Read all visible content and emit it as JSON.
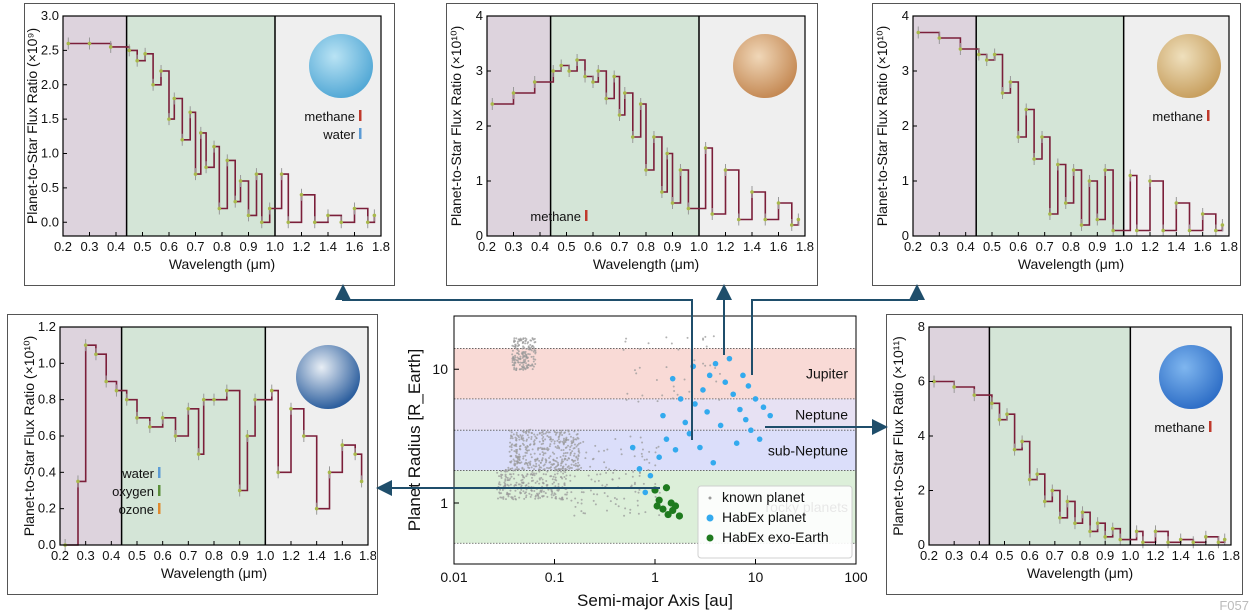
{
  "corner_label": "F057",
  "chart_data": [
    {
      "id": "jupiter-cold",
      "type": "line",
      "xlabel": "Wavelength (μm)",
      "ylabel": "Planet-to-Star Flux Ratio (×10⁹)",
      "xlim": [
        0.2,
        1.8
      ],
      "ylim": [
        -0.2,
        3.0
      ],
      "xticks": [
        "0.2",
        "0.3",
        "0.4",
        "0.5",
        "0.6",
        "0.7",
        "0.8",
        "0.9",
        "1.0",
        "1.2",
        "1.4",
        "1.6",
        "1.8"
      ],
      "yticks": [
        "0.0",
        "0.5",
        "1.0",
        "1.5",
        "2.0",
        "2.5",
        "3.0"
      ],
      "legend": [
        {
          "label": "methane",
          "color": "#c0392b"
        },
        {
          "label": "water",
          "color": "#5b9bd5"
        }
      ],
      "x": [
        0.22,
        0.3,
        0.38,
        0.45,
        0.48,
        0.51,
        0.54,
        0.57,
        0.6,
        0.62,
        0.65,
        0.68,
        0.7,
        0.72,
        0.74,
        0.77,
        0.79,
        0.82,
        0.85,
        0.87,
        0.9,
        0.93,
        0.95,
        0.98,
        1.05,
        1.1,
        1.2,
        1.3,
        1.4,
        1.5,
        1.6,
        1.7,
        1.75
      ],
      "y": [
        2.6,
        2.6,
        2.55,
        2.5,
        2.35,
        2.45,
        2.0,
        2.2,
        1.5,
        1.8,
        1.2,
        1.6,
        0.7,
        1.3,
        0.8,
        1.1,
        0.2,
        0.9,
        0.3,
        0.6,
        0.1,
        0.7,
        0.0,
        0.2,
        0.7,
        0.0,
        0.4,
        0.0,
        0.1,
        0.0,
        0.2,
        0.0,
        0.1
      ]
    },
    {
      "id": "jupiter-warm",
      "type": "line",
      "xlabel": "Wavelength (μm)",
      "ylabel": "Planet-to-Star Flux Ratio (×10¹⁰)",
      "xlim": [
        0.2,
        1.8
      ],
      "ylim": [
        0,
        4
      ],
      "xticks": [
        "0.2",
        "0.3",
        "0.4",
        "0.5",
        "0.6",
        "0.7",
        "0.8",
        "0.9",
        "1.0",
        "1.2",
        "1.4",
        "1.6",
        "1.8"
      ],
      "yticks": [
        "0",
        "1",
        "2",
        "3",
        "4"
      ],
      "legend": [
        {
          "label": "methane",
          "color": "#c0392b"
        }
      ],
      "x": [
        0.22,
        0.3,
        0.38,
        0.45,
        0.48,
        0.51,
        0.54,
        0.57,
        0.6,
        0.62,
        0.65,
        0.68,
        0.7,
        0.72,
        0.75,
        0.78,
        0.8,
        0.83,
        0.86,
        0.88,
        0.9,
        0.93,
        0.96,
        1.05,
        1.1,
        1.2,
        1.3,
        1.4,
        1.5,
        1.6,
        1.7,
        1.75
      ],
      "y": [
        2.4,
        2.6,
        2.8,
        3.0,
        3.1,
        3.0,
        3.2,
        2.9,
        2.8,
        3.0,
        2.5,
        2.9,
        2.2,
        2.6,
        1.8,
        2.4,
        1.2,
        1.8,
        0.8,
        1.5,
        0.6,
        1.2,
        0.5,
        1.6,
        0.4,
        1.2,
        0.3,
        0.8,
        0.3,
        0.6,
        0.2,
        0.3
      ]
    },
    {
      "id": "saturn",
      "type": "line",
      "xlabel": "Wavelength (μm)",
      "ylabel": "Planet-to-Star Flux Ratio (×10¹⁰)",
      "xlim": [
        0.2,
        1.8
      ],
      "ylim": [
        0,
        4
      ],
      "xticks": [
        "0.2",
        "0.3",
        "0.4",
        "0.5",
        "0.6",
        "0.7",
        "0.8",
        "0.9",
        "1.0",
        "1.2",
        "1.4",
        "1.6",
        "1.8"
      ],
      "yticks": [
        "0",
        "1",
        "2",
        "3",
        "4"
      ],
      "legend": [
        {
          "label": "methane",
          "color": "#c0392b"
        }
      ],
      "x": [
        0.22,
        0.3,
        0.38,
        0.45,
        0.48,
        0.51,
        0.54,
        0.57,
        0.6,
        0.63,
        0.66,
        0.69,
        0.72,
        0.75,
        0.78,
        0.81,
        0.84,
        0.87,
        0.9,
        0.93,
        0.96,
        1.05,
        1.1,
        1.2,
        1.3,
        1.4,
        1.5,
        1.6,
        1.7,
        1.75
      ],
      "y": [
        3.7,
        3.6,
        3.4,
        3.3,
        3.2,
        3.3,
        2.6,
        2.8,
        1.8,
        2.3,
        1.4,
        1.8,
        0.4,
        1.3,
        0.6,
        1.2,
        0.2,
        1.0,
        0.3,
        1.2,
        0.1,
        1.1,
        0.1,
        1.0,
        0.1,
        0.6,
        0.1,
        0.4,
        0.1,
        0.2
      ]
    },
    {
      "id": "earth",
      "type": "line",
      "xlabel": "Wavelength (μm)",
      "ylabel": "Planet-to-Star Flux Ratio (×10¹⁰)",
      "xlim": [
        0.2,
        1.8
      ],
      "ylim": [
        0,
        1.2
      ],
      "xticks": [
        "0.2",
        "0.3",
        "0.4",
        "0.5",
        "0.6",
        "0.7",
        "0.8",
        "0.9",
        "1.0",
        "1.2",
        "1.4",
        "1.6",
        "1.8"
      ],
      "yticks": [
        "0.0",
        "0.2",
        "0.4",
        "0.6",
        "0.8",
        "1.0",
        "1.2"
      ],
      "legend": [
        {
          "label": "water",
          "color": "#5b9bd5"
        },
        {
          "label": "oxygen",
          "color": "#5a8f3a"
        },
        {
          "label": "ozone",
          "color": "#e08a2e"
        }
      ],
      "x": [
        0.22,
        0.27,
        0.3,
        0.34,
        0.38,
        0.42,
        0.46,
        0.5,
        0.55,
        0.6,
        0.65,
        0.7,
        0.74,
        0.76,
        0.8,
        0.85,
        0.9,
        0.93,
        0.96,
        1.05,
        1.1,
        1.2,
        1.3,
        1.4,
        1.5,
        1.6,
        1.7,
        1.75
      ],
      "y": [
        0.0,
        0.35,
        1.1,
        1.05,
        0.9,
        0.85,
        0.8,
        0.7,
        0.65,
        0.7,
        0.6,
        0.75,
        0.5,
        0.8,
        0.8,
        0.85,
        0.3,
        0.6,
        0.8,
        0.85,
        0.4,
        0.75,
        0.6,
        0.2,
        0.4,
        0.55,
        0.5,
        0.35
      ]
    },
    {
      "id": "neptune",
      "type": "line",
      "xlabel": "Wavelength (μm)",
      "ylabel": "Planet-to-Star Flux Ratio (×10¹¹)",
      "xlim": [
        0.2,
        1.8
      ],
      "ylim": [
        0,
        8
      ],
      "xticks": [
        "0.2",
        "0.3",
        "0.4",
        "0.5",
        "0.6",
        "0.7",
        "0.8",
        "0.9",
        "1.0",
        "1.2",
        "1.4",
        "1.6",
        "1.8"
      ],
      "yticks": [
        "0",
        "2",
        "4",
        "6",
        "8"
      ],
      "legend": [
        {
          "label": "methane",
          "color": "#c0392b"
        }
      ],
      "x": [
        0.22,
        0.3,
        0.38,
        0.45,
        0.48,
        0.51,
        0.54,
        0.57,
        0.6,
        0.63,
        0.66,
        0.69,
        0.72,
        0.75,
        0.78,
        0.81,
        0.84,
        0.87,
        0.9,
        0.93,
        0.96,
        1.05,
        1.1,
        1.2,
        1.3,
        1.4,
        1.5,
        1.6,
        1.7,
        1.75
      ],
      "y": [
        6.0,
        5.8,
        5.5,
        5.2,
        4.6,
        4.8,
        3.5,
        3.8,
        2.4,
        2.6,
        1.6,
        2.0,
        1.0,
        1.6,
        0.8,
        1.2,
        0.5,
        0.8,
        0.3,
        0.6,
        0.2,
        0.5,
        0.1,
        0.5,
        0.1,
        0.2,
        0.1,
        0.3,
        0.1,
        0.2
      ]
    },
    {
      "id": "planet-population",
      "type": "scatter",
      "xlabel": "Semi-major Axis [au]",
      "ylabel": "Planet Radius [R_Earth]",
      "xscale": "log",
      "yscale": "log",
      "xlim": [
        0.01,
        100
      ],
      "ylim": [
        0.35,
        25
      ],
      "xticks": [
        "0.01",
        "0.1",
        "1",
        "10",
        "100"
      ],
      "yticks": [
        "1",
        "10"
      ],
      "bands": [
        {
          "label": "Jupiter",
          "range": [
            6,
            14.3
          ],
          "color": "#f9dad6"
        },
        {
          "label": "Neptune",
          "range": [
            3.5,
            6
          ],
          "color": "#e7e1f3"
        },
        {
          "label": "sub-Neptune",
          "range": [
            1.75,
            3.5
          ],
          "color": "#dbdefa"
        },
        {
          "label": "rocky planets",
          "range": [
            0.5,
            1.75
          ],
          "color": "#dcefd9"
        }
      ],
      "legend": [
        {
          "label": "known planet",
          "color": "#9a9a9a"
        },
        {
          "label": "HabEx planet",
          "color": "#33aaee"
        },
        {
          "label": "HabEx exo-Earth",
          "color": "#1e7a1e"
        }
      ],
      "series": [
        {
          "name": "HabEx exo-Earth",
          "points": [
            [
              1.0,
              1.25
            ],
            [
              1.3,
              1.3
            ],
            [
              1.1,
              1.05
            ],
            [
              1.45,
              1.0
            ],
            [
              1.6,
              0.95
            ],
            [
              1.2,
              0.9
            ],
            [
              1.5,
              0.88
            ],
            [
              1.75,
              0.8
            ],
            [
              1.35,
              0.82
            ],
            [
              1.05,
              0.95
            ]
          ]
        },
        {
          "name": "HabEx planet",
          "points": [
            [
              0.8,
              1.2
            ],
            [
              0.9,
              1.6
            ],
            [
              1.1,
              2.2
            ],
            [
              1.3,
              3.0
            ],
            [
              1.6,
              2.5
            ],
            [
              2.0,
              4.0
            ],
            [
              2.5,
              5.5
            ],
            [
              3.0,
              7.0
            ],
            [
              3.5,
              9.0
            ],
            [
              4.0,
              11.0
            ],
            [
              5.0,
              8.0
            ],
            [
              6.0,
              6.5
            ],
            [
              7.0,
              5.0
            ],
            [
              8.0,
              4.2
            ],
            [
              9.0,
              3.5
            ],
            [
              10.0,
              6.0
            ],
            [
              12.0,
              5.2
            ],
            [
              14.0,
              4.5
            ],
            [
              2.2,
              3.3
            ],
            [
              2.8,
              2.6
            ],
            [
              3.3,
              4.8
            ],
            [
              4.5,
              3.8
            ],
            [
              1.8,
              6.0
            ],
            [
              1.5,
              8.5
            ],
            [
              2.4,
              10.5
            ],
            [
              5.5,
              12.0
            ],
            [
              6.5,
              2.8
            ],
            [
              7.5,
              9.0
            ],
            [
              8.5,
              7.5
            ],
            [
              0.7,
              1.8
            ],
            [
              0.6,
              2.6
            ],
            [
              1.2,
              4.5
            ],
            [
              3.8,
              2.0
            ],
            [
              11.0,
              3.0
            ]
          ]
        }
      ]
    }
  ]
}
